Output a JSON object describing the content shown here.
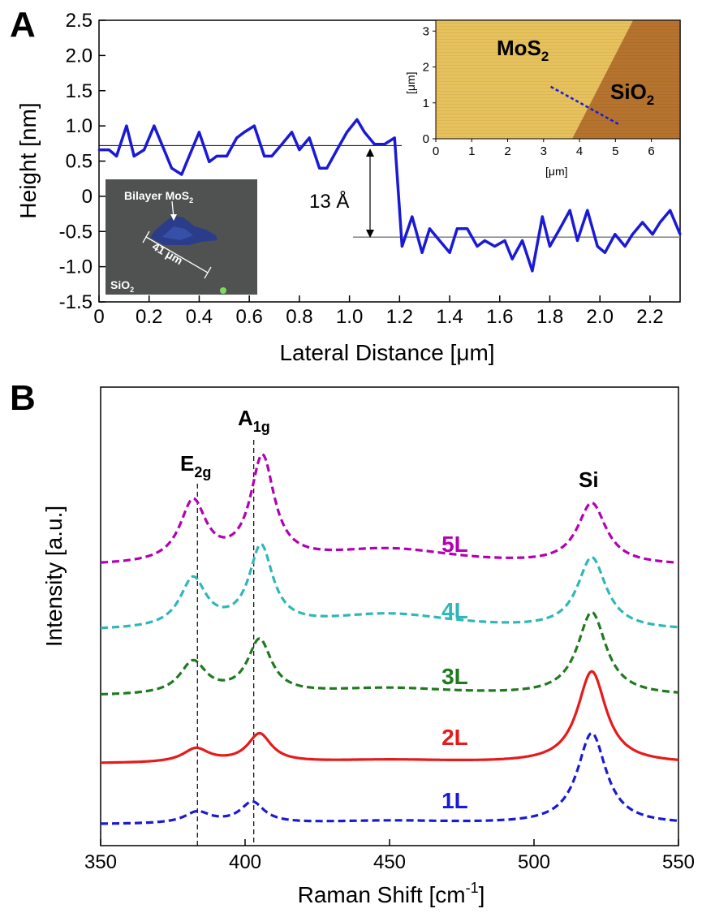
{
  "panel_a": {
    "panel_label": "A",
    "step_annotation": "13 Å",
    "optical_inset": {
      "flake_label": "Bilayer MoS",
      "flake_label_sub": "2",
      "substrate_label": "SiO",
      "substrate_label_sub": "2",
      "scale_label": "41 μm"
    },
    "afm_inset": {
      "region_left_label": "MoS",
      "region_left_sub": "2",
      "region_right_label": "SiO",
      "region_right_sub": "2",
      "x_label": "[μm]",
      "y_label": "[μm]",
      "x_ticks": [
        "0",
        "1",
        "2",
        "3",
        "4",
        "5",
        "6"
      ],
      "y_ticks": [
        "0",
        "1",
        "2",
        "3"
      ],
      "xlim": [
        0,
        6.8
      ],
      "ylim": [
        0,
        3.3
      ],
      "line_profile": {
        "x": [
          3.2,
          5.1
        ],
        "y": [
          1.45,
          0.4
        ]
      },
      "colors": {
        "mos2": "#e6c15c",
        "sio2": "#b5732e",
        "profile": "#1a1ad6"
      }
    }
  },
  "panel_b": {
    "panel_label": "B",
    "peak_labels": {
      "e2g": "E",
      "e2g_sub": "2g",
      "a1g": "A",
      "a1g_sub": "1g",
      "si": "Si"
    }
  },
  "chart_data": [
    {
      "id": "height_profile",
      "type": "line",
      "xlabel": "Lateral Distance [μm]",
      "ylabel": "Height [nm]",
      "xlim": [
        0,
        2.32
      ],
      "ylim": [
        -1.5,
        2.5
      ],
      "x_ticks": [
        "0",
        "0.2",
        "0.4",
        "0.6",
        "0.8",
        "1.0",
        "1.2",
        "1.4",
        "1.6",
        "1.8",
        "2.0",
        "2.2"
      ],
      "y_ticks": [
        "2.5",
        "2.0",
        "1.5",
        "1.0",
        "0.5",
        "0",
        "-0.5",
        "-1.0",
        "-1.5"
      ],
      "series": [
        {
          "color": "#1a1ad6",
          "x": [
            0,
            0.04,
            0.07,
            0.11,
            0.14,
            0.18,
            0.22,
            0.26,
            0.29,
            0.33,
            0.36,
            0.4,
            0.44,
            0.47,
            0.51,
            0.55,
            0.58,
            0.62,
            0.66,
            0.69,
            0.73,
            0.77,
            0.8,
            0.84,
            0.88,
            0.91,
            0.95,
            0.99,
            1.03,
            1.06,
            1.1,
            1.14,
            1.18,
            1.21,
            1.25,
            1.29,
            1.32,
            1.36,
            1.4,
            1.43,
            1.47,
            1.51,
            1.54,
            1.58,
            1.62,
            1.65,
            1.69,
            1.73,
            1.77,
            1.8,
            1.84,
            1.88,
            1.91,
            1.95,
            1.99,
            2.02,
            2.06,
            2.1,
            2.13,
            2.17,
            2.21,
            2.24,
            2.28,
            2.32
          ],
          "y": [
            0.66,
            0.66,
            0.57,
            1.0,
            0.57,
            0.66,
            1.0,
            0.66,
            0.4,
            0.31,
            0.57,
            0.91,
            0.49,
            0.57,
            0.57,
            0.83,
            0.91,
            1.0,
            0.57,
            0.57,
            0.74,
            0.91,
            0.66,
            0.83,
            0.4,
            0.4,
            0.66,
            0.91,
            1.09,
            0.91,
            0.74,
            0.74,
            0.83,
            -0.71,
            -0.29,
            -0.8,
            -0.46,
            -0.63,
            -0.8,
            -0.46,
            -0.46,
            -0.71,
            -0.63,
            -0.71,
            -0.63,
            -0.89,
            -0.63,
            -1.06,
            -0.29,
            -0.71,
            -0.46,
            -0.2,
            -0.63,
            -0.2,
            -0.71,
            -0.8,
            -0.54,
            -0.71,
            -0.54,
            -0.37,
            -0.54,
            -0.37,
            -0.2,
            -0.54
          ]
        }
      ],
      "reference_lines": [
        0.72,
        -0.58
      ]
    },
    {
      "id": "raman_spectra",
      "type": "line",
      "xlabel": "Raman Shift [cm",
      "xlabel_sup": "-1",
      "xlabel_end": "]",
      "ylabel": "Intensity [a.u.]",
      "xlim": [
        350,
        550
      ],
      "x_ticks": [
        "350",
        "400",
        "450",
        "500",
        "550"
      ],
      "peak_markers_x": [
        383.5,
        403
      ],
      "series": [
        {
          "name": "5L",
          "color": "#b300b3",
          "dashed": true,
          "baseline": 698,
          "bump": 0,
          "peaks": [
            {
              "center": 382,
              "amp": 75,
              "width": 5.5
            },
            {
              "center": 406,
              "amp": 128,
              "width": 5.0
            },
            {
              "center": 450,
              "amp": 20,
              "width": 30
            },
            {
              "center": 520,
              "amp": 75,
              "width": 6.0
            }
          ]
        },
        {
          "name": "4L",
          "color": "#2fb7b7",
          "dashed": true,
          "baseline": 778,
          "bump": 0,
          "peaks": [
            {
              "center": 382,
              "amp": 60,
              "width": 5.5
            },
            {
              "center": 405.5,
              "amp": 98,
              "width": 5.0
            },
            {
              "center": 450,
              "amp": 20,
              "width": 30
            },
            {
              "center": 520,
              "amp": 88,
              "width": 6.0
            }
          ]
        },
        {
          "name": "3L",
          "color": "#1f7a1f",
          "dashed": true,
          "baseline": 858,
          "bump": 0,
          "peaks": [
            {
              "center": 382,
              "amp": 40,
              "width": 5.5
            },
            {
              "center": 405,
              "amp": 66,
              "width": 5.0
            },
            {
              "center": 450,
              "amp": 9,
              "width": 30
            },
            {
              "center": 520,
              "amp": 102,
              "width": 6.0
            }
          ]
        },
        {
          "name": "2L",
          "color": "#e61a1a",
          "dashed": false,
          "baseline": 941,
          "bump": 0,
          "peaks": [
            {
              "center": 383,
              "amp": 17,
              "width": 5.5
            },
            {
              "center": 405,
              "amp": 35,
              "width": 5.0
            },
            {
              "center": 450,
              "amp": 4,
              "width": 30
            },
            {
              "center": 520,
              "amp": 113,
              "width": 6.0
            }
          ]
        },
        {
          "name": "1L",
          "color": "#1a1ad6",
          "dashed": true,
          "baseline": 1016,
          "bump": 0,
          "peaks": [
            {
              "center": 383.5,
              "amp": 14,
              "width": 5.5
            },
            {
              "center": 402.5,
              "amp": 26,
              "width": 5.0
            },
            {
              "center": 450,
              "amp": 4,
              "width": 30
            },
            {
              "center": 520,
              "amp": 112,
              "width": 6.0
            }
          ]
        }
      ]
    }
  ]
}
